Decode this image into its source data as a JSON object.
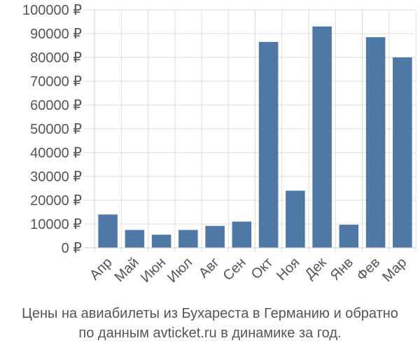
{
  "chart_data": {
    "type": "bar",
    "categories": [
      "Апр",
      "Май",
      "Июн",
      "Июл",
      "Авг",
      "Сен",
      "Окт",
      "Ноя",
      "Дек",
      "Янв",
      "Фев",
      "Мар"
    ],
    "values": [
      14000,
      7500,
      5500,
      7500,
      9200,
      11000,
      86500,
      24000,
      93000,
      9700,
      88500,
      80000
    ],
    "y_ticks": [
      {
        "value": 0,
        "label": "0 ₽"
      },
      {
        "value": 10000,
        "label": "10000 ₽"
      },
      {
        "value": 20000,
        "label": "20000 ₽"
      },
      {
        "value": 30000,
        "label": "30000 ₽"
      },
      {
        "value": 40000,
        "label": "40000 ₽"
      },
      {
        "value": 50000,
        "label": "50000 ₽"
      },
      {
        "value": 60000,
        "label": "60000 ₽"
      },
      {
        "value": 70000,
        "label": "70000 ₽"
      },
      {
        "value": 80000,
        "label": "80000 ₽"
      },
      {
        "value": 90000,
        "label": "90000 ₽"
      },
      {
        "value": 100000,
        "label": "100000 ₽"
      }
    ],
    "ylim": [
      0,
      100000
    ],
    "grid": true,
    "bar_color": "#4e79a7",
    "grid_color": "#dddddd",
    "title": "",
    "xlabel": "",
    "ylabel": ""
  },
  "caption": {
    "line1": "Цены на авиабилеты из Бухареста в Германию и обратно",
    "line2": "по данным avticket.ru в динамике за год."
  }
}
